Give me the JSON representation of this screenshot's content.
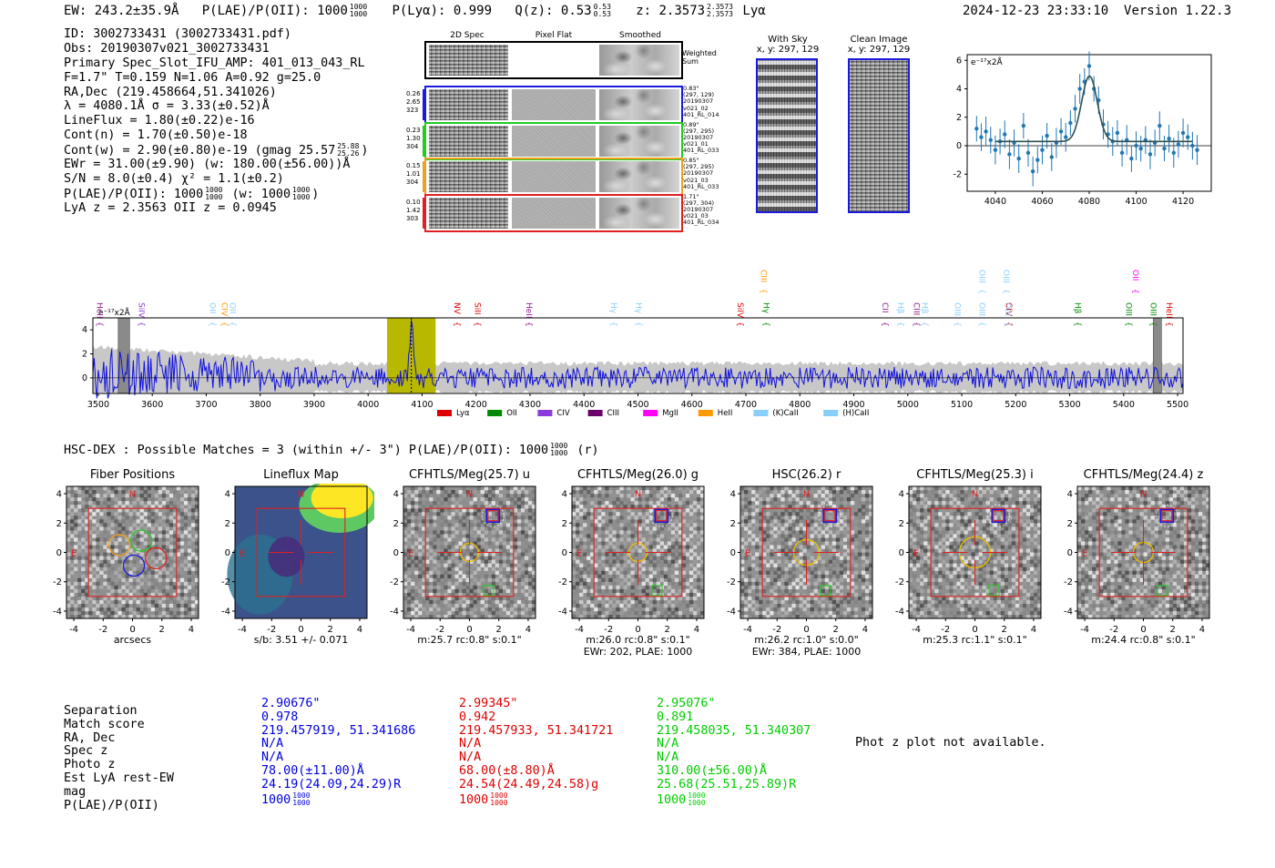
{
  "header": {
    "ew": "EW: 243.2±35.9Å",
    "plae_label": "P(LAE)/P(OII): 1000",
    "plae_hi": "1000",
    "plae_lo": "1000",
    "plya": "P(Lyα): 0.999",
    "qz_label": "Q(z): 0.53",
    "qz_hi": "0.53",
    "qz_lo": "0.53",
    "z_label": "z: 2.3573",
    "z_hi": "2.3573",
    "z_lo": "2.3573",
    "z_line": "Lyα",
    "timestamp": "2024-12-23 23:33:10",
    "version": "Version 1.22.3"
  },
  "info": {
    "l1": "ID: 3002733431 (3002733431.pdf)",
    "l2": "Obs: 20190307v021_3002733431",
    "l3": "Primary Spec_Slot_IFU_AMP: 401_013_043_RL",
    "l4": "F=1.7\"  T=0.159  N=1.06  A=0.92  g=25.0",
    "l5": "RA,Dec (219.458664,51.341026)",
    "l6": "λ = 4080.1Å  σ = 3.33(±0.52)Å",
    "l7": "LineFlux = 1.80(±0.22)e-16",
    "l8": "Cont(n) = 1.70(±0.50)e-18",
    "l9": "Cont(w) = 2.90(±0.80)e-19 (gmag 25.57",
    "l9_hi": "25.88",
    "l9_lo": "25.26",
    "l10": "EWr = 31.00(±9.90) (w: 180.00(±56.00))Å",
    "l11": "S/N = 8.0(±0.4)  χ² = 1.1(±0.2)",
    "l12": "P(LAE)/P(OII): 1000",
    "l12_hi": "1000",
    "l12_lo": "1000",
    "l12_mid": "(w: 1000",
    "l12_whi": "1000",
    "l12_wlo": "1000",
    "l13": "LyA z = 2.3563  OII z = 0.0945"
  },
  "cutouts": {
    "col_2d": "2D Spec",
    "col_flat": "Pixel Flat",
    "col_smooth": "Smoothed",
    "weighted": "Weighted Sum",
    "rows": [
      {
        "left": [
          "0.26",
          "2.65",
          "323"
        ],
        "right": [
          "0.83\"",
          "(297, 129)",
          "20190307",
          "v021_02",
          "401_RL_014"
        ],
        "color": "#1a1adc"
      },
      {
        "left": [
          "0.23",
          "1.30",
          "304"
        ],
        "right": [
          "0.89\"",
          "(297, 295)",
          "20190307",
          "v021_01",
          "401_RL_033"
        ],
        "color": "#22cc22"
      },
      {
        "left": [
          "0.15",
          "1.01",
          "304"
        ],
        "right": [
          "0.85\"",
          "(297, 295)",
          "20190307",
          "v021_03",
          "401_RL_033"
        ],
        "color": "#f0a020"
      },
      {
        "left": [
          "0.10",
          "1.42",
          "303"
        ],
        "right": [
          "1.71\"",
          "(297, 304)",
          "20190307",
          "v021_03",
          "401_RL_034"
        ],
        "color": "#e02020"
      }
    ],
    "with_sky": "With Sky",
    "with_sky_xy": "x, y: 297, 129",
    "clean": "Clean Image",
    "clean_xy": "x, y: 297, 129"
  },
  "zoom_chart": {
    "type": "scatter",
    "unit": "e⁻¹⁷x2Å",
    "xlim": [
      4028,
      4132
    ],
    "ylim": [
      -3.2,
      6.4
    ],
    "xticks": [
      4040,
      4060,
      4080,
      4100,
      4120
    ],
    "yticks": [
      -2,
      0,
      2,
      4,
      6
    ],
    "x": [
      4032,
      4034,
      4036,
      4038,
      4040,
      4042,
      4044,
      4046,
      4048,
      4050,
      4052,
      4054,
      4056,
      4058,
      4060,
      4062,
      4064,
      4066,
      4068,
      4070,
      4072,
      4074,
      4076,
      4078,
      4080,
      4082,
      4084,
      4086,
      4088,
      4090,
      4092,
      4094,
      4096,
      4098,
      4100,
      4102,
      4104,
      4106,
      4108,
      4110,
      4112,
      4114,
      4116,
      4118,
      4120,
      4122,
      4124,
      4126
    ],
    "y": [
      1.2,
      0.6,
      1.0,
      0.4,
      -0.3,
      0.3,
      0.8,
      -0.6,
      0.2,
      -0.9,
      1.4,
      -0.5,
      -1.8,
      -1.0,
      -0.3,
      0.7,
      -0.8,
      0.2,
      1.0,
      0.6,
      1.6,
      2.6,
      4.0,
      4.5,
      5.6,
      4.0,
      3.2,
      1.5,
      0.8,
      0.3,
      0.9,
      -0.5,
      0.4,
      -0.9,
      0.0,
      -0.2,
      0.4,
      -0.6,
      0.2,
      1.4,
      -0.2,
      0.5,
      -0.5,
      0.1,
      0.9,
      0.6,
      0.0,
      -0.3
    ],
    "fit_center": 4080.1,
    "fit_sigma": 3.33,
    "fit_amp": 4.6,
    "fit_cont": 0.3
  },
  "spectrum": {
    "type": "line",
    "unit": "e⁻¹⁷x2Å",
    "xlim": [
      3490,
      5510
    ],
    "ylim": [
      -1.3,
      5.0
    ],
    "xticks": [
      3500,
      3600,
      3700,
      3800,
      3900,
      4000,
      4100,
      4200,
      4300,
      4400,
      4500,
      4600,
      4700,
      4800,
      4900,
      5000,
      5100,
      5200,
      5300,
      5400,
      5500
    ],
    "yticks": [
      0,
      2,
      4
    ],
    "highlight": [
      4035,
      4125
    ],
    "line_peak": 4080.1,
    "masks": [
      [
        3537,
        3558
      ],
      [
        5455,
        5470
      ]
    ],
    "lines": [
      {
        "name": "HeII",
        "x": 3503,
        "color": "#8b1a8b",
        "top": false
      },
      {
        "name": "SiIV",
        "x": 3580,
        "color": "#8b3adc",
        "top": false
      },
      {
        "name": "OII",
        "x": 3712,
        "color": "#87cefa",
        "top": false
      },
      {
        "name": "CIV",
        "x": 3734,
        "color": "#ff9900",
        "top": false
      },
      {
        "name": "OII",
        "x": 3749,
        "color": "#87cefa",
        "top": false
      },
      {
        "name": "NV",
        "x": 4165,
        "color": "#dd0000",
        "top": false
      },
      {
        "name": "SiII",
        "x": 4203,
        "color": "#dd0000",
        "top": false
      },
      {
        "name": "HeII",
        "x": 4298,
        "color": "#8b1a8b",
        "top": false
      },
      {
        "name": "Hγ",
        "x": 4455,
        "color": "#87cefa",
        "top": false
      },
      {
        "name": "Hγ",
        "x": 4502,
        "color": "#87cefa",
        "top": false
      },
      {
        "name": "SiIV",
        "x": 4690,
        "color": "#dd0000",
        "top": false
      },
      {
        "name": "Hγ",
        "x": 4738,
        "color": "#008800",
        "top": false
      },
      {
        "name": "CIII",
        "x": 4733,
        "color": "#ff9900",
        "top": true
      },
      {
        "name": "CII",
        "x": 4958,
        "color": "#8b1a8b",
        "top": false
      },
      {
        "name": "Hβ",
        "x": 4987,
        "color": "#87cefa",
        "top": false
      },
      {
        "name": "CIII",
        "x": 5016,
        "color": "#8b1a8b",
        "top": false
      },
      {
        "name": "Hβ",
        "x": 5032,
        "color": "#87cefa",
        "top": false
      },
      {
        "name": "OIII",
        "x": 5092,
        "color": "#87cefa",
        "top": false
      },
      {
        "name": "OIII",
        "x": 5138,
        "color": "#87cefa",
        "top": false
      },
      {
        "name": "OIII",
        "x": 5138,
        "color": "#87cefa",
        "top": true
      },
      {
        "name": "OIII",
        "x": 5183,
        "color": "#87cefa",
        "top": true
      },
      {
        "name": "CIV",
        "x": 5188,
        "color": "#dd0000",
        "top": false
      },
      {
        "name": "OIII",
        "x": 5185,
        "color": "#87cefa",
        "top": false
      },
      {
        "name": "Hβ",
        "x": 5315,
        "color": "#008800",
        "top": false
      },
      {
        "name": "OIII",
        "x": 5410,
        "color": "#008800",
        "top": false
      },
      {
        "name": "OII",
        "x": 5422,
        "color": "#ff00ff",
        "top": true
      },
      {
        "name": "OIII",
        "x": 5455,
        "color": "#008800",
        "top": false
      },
      {
        "name": "HeII",
        "x": 5485,
        "color": "#dd0000",
        "top": false
      }
    ],
    "legend": [
      {
        "label": "Lyα",
        "color": "#dd0000"
      },
      {
        "label": "OII",
        "color": "#008800"
      },
      {
        "label": "CIV",
        "color": "#8b3adc"
      },
      {
        "label": "CIII",
        "color": "#6b006b"
      },
      {
        "label": "MgII",
        "color": "#ff00ff"
      },
      {
        "label": "HeII",
        "color": "#ff9900"
      },
      {
        "label": "(K)CaII",
        "color": "#87cefa"
      },
      {
        "label": "(H)CaII",
        "color": "#87cefa"
      }
    ]
  },
  "matches": {
    "heading": "HSC-DEX : Possible Matches = 3 (within +/- 3\")  P(LAE)/P(OII): 1000",
    "heading_hi": "1000",
    "heading_lo": "1000",
    "heading_band": "(r)",
    "axis_ticks": [
      -4,
      -2,
      0,
      2,
      4
    ],
    "panels": [
      {
        "title": "Fiber Positions",
        "cap1": "arcsecs",
        "cap2": ""
      },
      {
        "title": "Lineflux Map",
        "cap1": "s/b: 3.51 +/- 0.071",
        "cap2": ""
      },
      {
        "title": "CFHTLS/Meg(25.7) u",
        "cap1": "m:25.7 rc:0.8\"  s:0.1\"",
        "cap2": ""
      },
      {
        "title": "CFHTLS/Meg(26.0) g",
        "cap1": "m:26.0 rc:0.8\"  s:0.1\"",
        "cap2": "EWr: 202, PLAE: 1000"
      },
      {
        "title": "HSC(26.2) r",
        "cap1": "m:26.2 rc:1.0\"  s:0.0\"",
        "cap2": "EWr: 384, PLAE: 1000"
      },
      {
        "title": "CFHTLS/Meg(25.3) i",
        "cap1": "m:25.3 rc:1.1\"  s:0.1\"",
        "cap2": ""
      },
      {
        "title": "CFHTLS/Meg(24.4) z",
        "cap1": "m:24.4 rc:0.8\"  s:0.1\"",
        "cap2": ""
      }
    ],
    "n_label": "N",
    "e_label": "E"
  },
  "table": {
    "labels": [
      "Separation",
      "Match score",
      "RA, Dec",
      "Spec z",
      "Photo z",
      "Est LyA rest-EW",
      "mag",
      "P(LAE)/P(OII)"
    ],
    "cols": [
      {
        "color": "#0000dd",
        "values": [
          "2.90676\"",
          "0.978",
          "219.457919, 51.341686",
          "N/A",
          "N/A",
          "78.00(±11.00)Å",
          "24.19(24.09,24.29)R",
          "1000"
        ],
        "hi": "1000",
        "lo": "1000"
      },
      {
        "color": "#dd0000",
        "values": [
          "2.99345\"",
          "0.942",
          "219.457933, 51.341721",
          "N/A",
          "N/A",
          "68.00(±8.80)Å",
          "24.54(24.49,24.58)g",
          "1000"
        ],
        "hi": "1000",
        "lo": "1000"
      },
      {
        "color": "#00cc00",
        "values": [
          "2.95076\"",
          "0.891",
          "219.458035, 51.340307",
          "N/A",
          "N/A",
          "310.00(±56.00)Å",
          "25.68(25.51,25.89)R",
          "1000"
        ],
        "hi": "1000",
        "lo": "1000"
      }
    ],
    "photz_msg": "Phot z plot not available."
  }
}
